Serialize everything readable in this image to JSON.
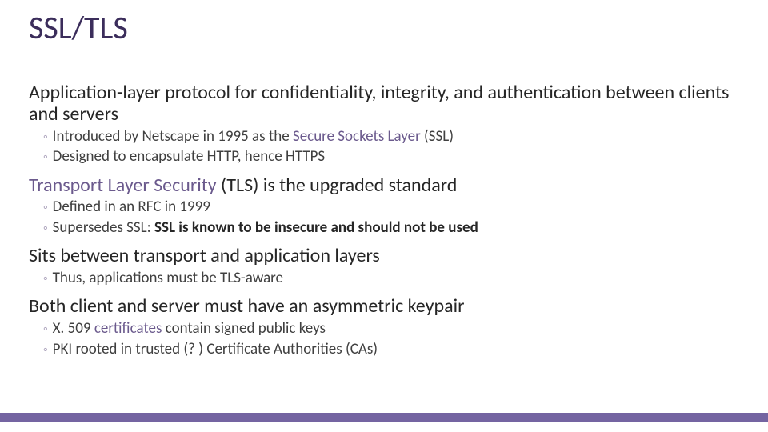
{
  "colors": {
    "title": "#3b2d5b",
    "section_text": "#262626",
    "bullet_text": "#404040",
    "bullet_mark": "#a9a0ba",
    "link": "#6b5a8d",
    "footer_bar": "#7464a1",
    "background": "#ffffff"
  },
  "typography": {
    "title_fontsize": 40,
    "section_fontsize": 24,
    "bullet_fontsize": 19,
    "font_family": "Segoe UI / Calibri"
  },
  "slide": {
    "title": "SSL/TLS",
    "blocks": [
      {
        "heading_parts": [
          {
            "text": "Application-layer protocol for confidentiality, integrity, and authentication between clients and servers",
            "link": false
          }
        ],
        "bullets": [
          {
            "parts": [
              {
                "text": "Introduced by Netscape in 1995 as the ",
                "bold": false,
                "link": false
              },
              {
                "text": "Secure Sockets Layer",
                "bold": false,
                "link": true
              },
              {
                "text": " (SSL)",
                "bold": false,
                "link": false
              }
            ]
          },
          {
            "parts": [
              {
                "text": "Designed to encapsulate HTTP, hence HTTPS",
                "bold": false,
                "link": false
              }
            ]
          }
        ]
      },
      {
        "heading_parts": [
          {
            "text": "Transport Layer Security",
            "link": true
          },
          {
            "text": " (TLS) is the upgraded standard",
            "link": false
          }
        ],
        "bullets": [
          {
            "parts": [
              {
                "text": "Defined in an RFC in 1999",
                "bold": false,
                "link": false
              }
            ]
          },
          {
            "parts": [
              {
                "text": "Supersedes SSL: ",
                "bold": false,
                "link": false
              },
              {
                "text": "SSL is known to be insecure and should not be used",
                "bold": true,
                "link": false
              }
            ]
          }
        ]
      },
      {
        "heading_parts": [
          {
            "text": "Sits between transport and application layers",
            "link": false
          }
        ],
        "bullets": [
          {
            "parts": [
              {
                "text": "Thus, applications must be TLS-aware",
                "bold": false,
                "link": false
              }
            ]
          }
        ]
      },
      {
        "heading_parts": [
          {
            "text": "Both client and server must have an asymmetric keypair",
            "link": false
          }
        ],
        "bullets": [
          {
            "parts": [
              {
                "text": "X. 509 ",
                "bold": false,
                "link": false
              },
              {
                "text": "certificates",
                "bold": false,
                "link": true
              },
              {
                "text": " contain signed public keys",
                "bold": false,
                "link": false
              }
            ]
          },
          {
            "parts": [
              {
                "text": "PKI rooted in trusted (? ) Certificate Authorities (CAs)",
                "bold": false,
                "link": false
              }
            ]
          }
        ]
      }
    ]
  },
  "bullet_mark": "◦"
}
